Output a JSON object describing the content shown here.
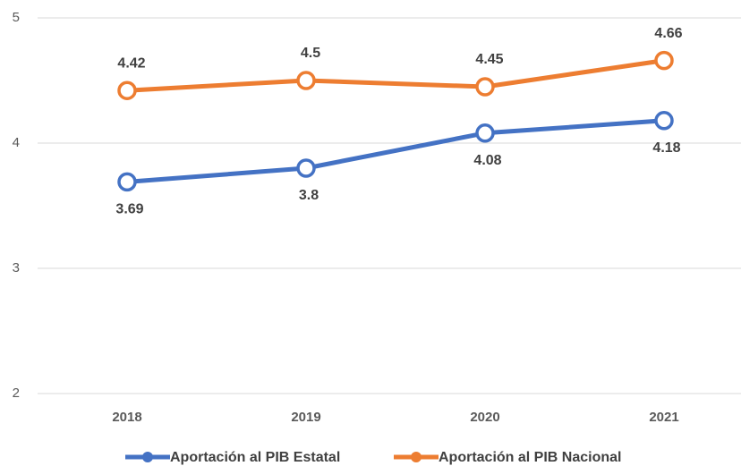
{
  "chart_data": {
    "type": "line",
    "categories": [
      "2018",
      "2019",
      "2020",
      "2021"
    ],
    "series": [
      {
        "name": "Aportación al PIB Estatal",
        "color": "#4472c4",
        "values": [
          3.69,
          3.8,
          4.08,
          4.18
        ]
      },
      {
        "name": "Aportación al PIB Nacional",
        "color": "#ed7d31",
        "values": [
          4.42,
          4.5,
          4.45,
          4.66
        ]
      }
    ],
    "ylim": [
      2,
      5
    ],
    "yticks": [
      2,
      3,
      4,
      5
    ],
    "grid": true,
    "legend": "bottom"
  }
}
